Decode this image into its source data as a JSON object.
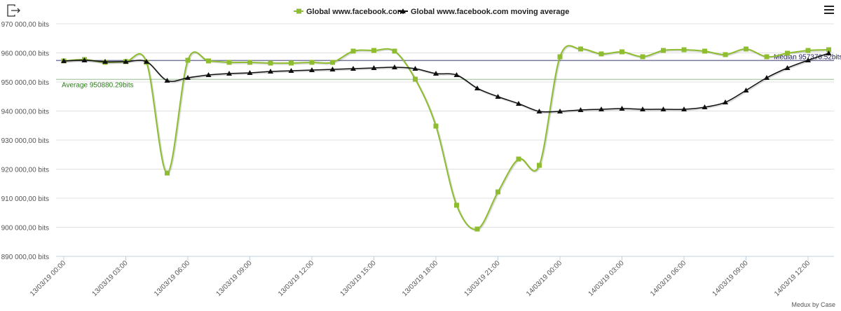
{
  "credit": "Medux by Case",
  "colors": {
    "green": "#8ebd2f",
    "black": "#111111",
    "median": "#333366",
    "average": "#2e7d1e"
  },
  "chart_data": {
    "type": "line",
    "ylim": [
      890000,
      970000
    ],
    "yticks": [
      890000,
      900000,
      910000,
      920000,
      930000,
      940000,
      950000,
      960000,
      970000
    ],
    "ytick_labels": [
      "890 000,00 bits",
      "900 000,00 bits",
      "910 000,00 bits",
      "920 000,00 bits",
      "930 000,00 bits",
      "940 000,00 bits",
      "950 000,00 bits",
      "960 000,00 bits",
      "970 000,00 bits"
    ],
    "xtick_labels": [
      "13/03/19 00:00",
      "13/03/19 03:00",
      "13/03/19 06:00",
      "13/03/19 09:00",
      "13/03/19 12:00",
      "13/03/19 15:00",
      "13/03/19 18:00",
      "13/03/19 21:00",
      "14/03/19 00:00",
      "14/03/19 03:00",
      "14/03/19 06:00",
      "14/03/19 09:00",
      "14/03/19 12:00"
    ],
    "x_step_hours": 1,
    "series": [
      {
        "name": "Global www.facebook.com",
        "values": [
          957230,
          957700,
          956750,
          957000,
          956750,
          918670,
          957470,
          957230,
          956750,
          956750,
          956500,
          956500,
          956750,
          956750,
          960600,
          960840,
          960600,
          950960,
          934820,
          907590,
          899400,
          912170,
          923490,
          921330,
          958670,
          961330,
          959640,
          960360,
          958670,
          960840,
          961080,
          960600,
          959400,
          961330,
          958670,
          959880,
          960840,
          961080
        ]
      },
      {
        "name": "Global www.facebook.com moving average",
        "values": [
          957230,
          957470,
          957000,
          957000,
          957000,
          950480,
          951450,
          952410,
          952890,
          953130,
          953610,
          953850,
          954100,
          954340,
          954580,
          954820,
          955060,
          954580,
          952890,
          952410,
          947830,
          944940,
          942530,
          939880,
          939880,
          940360,
          940600,
          940840,
          940600,
          940600,
          940600,
          941330,
          943010,
          947110,
          951450,
          954820,
          957470,
          959880
        ]
      }
    ],
    "plotlines": [
      {
        "label": "Median 957376.52bits",
        "value": 957376.52
      },
      {
        "label": "Average 950880.29bits",
        "value": 950880.29
      }
    ]
  }
}
